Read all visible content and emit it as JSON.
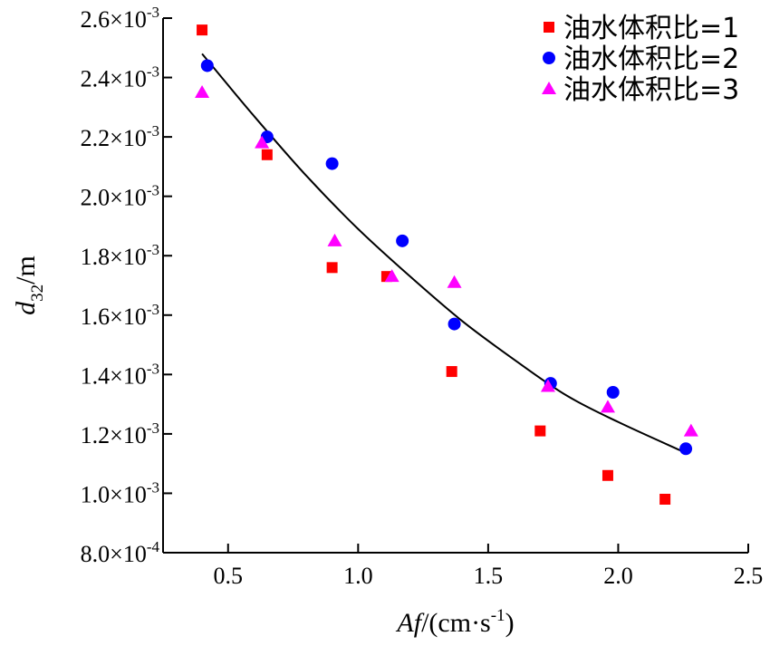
{
  "chart_data": {
    "type": "scatter",
    "xlabel": {
      "italic": "Af",
      "text": "/(cm·s",
      "sup": "-1",
      "close": ")"
    },
    "ylabel": {
      "italic": "d",
      "sub": "32",
      "text": "/m"
    },
    "xlim": [
      0.25,
      2.5
    ],
    "ylim": [
      0.0008,
      0.0026
    ],
    "x_ticks": [
      {
        "value": 0.5,
        "label": "0.5"
      },
      {
        "value": 1.0,
        "label": "1.0"
      },
      {
        "value": 1.5,
        "label": "1.5"
      },
      {
        "value": 2.0,
        "label": "2.0"
      },
      {
        "value": 2.5,
        "label": "2.5"
      }
    ],
    "y_ticks": [
      {
        "value": 0.0008,
        "mantissa": "8.0×10",
        "exp": "-4"
      },
      {
        "value": 0.001,
        "mantissa": "1.0×10",
        "exp": "-3"
      },
      {
        "value": 0.0012,
        "mantissa": "1.2×10",
        "exp": "-3"
      },
      {
        "value": 0.0014,
        "mantissa": "1.4×10",
        "exp": "-3"
      },
      {
        "value": 0.0016,
        "mantissa": "1.6×10",
        "exp": "-3"
      },
      {
        "value": 0.0018,
        "mantissa": "1.8×10",
        "exp": "-3"
      },
      {
        "value": 0.002,
        "mantissa": "2.0×10",
        "exp": "-3"
      },
      {
        "value": 0.0022,
        "mantissa": "2.2×10",
        "exp": "-3"
      },
      {
        "value": 0.0024,
        "mantissa": "2.4×10",
        "exp": "-3"
      },
      {
        "value": 0.0026,
        "mantissa": "2.6×10",
        "exp": "-3"
      }
    ],
    "grid": false,
    "legend_position": "top-right",
    "series": [
      {
        "name": "油水体积比=1",
        "marker": "square",
        "color": "#ff0000",
        "points": [
          [
            0.4,
            0.00256
          ],
          [
            0.65,
            0.00214
          ],
          [
            0.9,
            0.00176
          ],
          [
            1.11,
            0.00173
          ],
          [
            1.36,
            0.00141
          ],
          [
            1.7,
            0.00121
          ],
          [
            1.96,
            0.00106
          ],
          [
            2.18,
            0.00098
          ]
        ]
      },
      {
        "name": "油水体积比=2",
        "marker": "circle",
        "color": "#0000ff",
        "points": [
          [
            0.42,
            0.00244
          ],
          [
            0.65,
            0.0022
          ],
          [
            0.9,
            0.00211
          ],
          [
            1.17,
            0.00185
          ],
          [
            1.37,
            0.00157
          ],
          [
            1.74,
            0.00137
          ],
          [
            1.98,
            0.00134
          ],
          [
            2.26,
            0.00115
          ]
        ]
      },
      {
        "name": "油水体积比=3",
        "marker": "triangle",
        "color": "#ff00ff",
        "points": [
          [
            0.4,
            0.00235
          ],
          [
            0.63,
            0.00218
          ],
          [
            0.91,
            0.00185
          ],
          [
            1.13,
            0.00173
          ],
          [
            1.37,
            0.00171
          ],
          [
            1.73,
            0.00136
          ],
          [
            1.96,
            0.00129
          ],
          [
            2.28,
            0.00121
          ]
        ]
      }
    ],
    "fit_line": {
      "color": "#000000",
      "x": [
        0.4,
        0.6,
        0.8,
        1.0,
        1.2,
        1.4,
        1.6,
        1.8,
        2.0,
        2.25
      ],
      "y": [
        0.00248,
        0.00227,
        0.00207,
        0.00189,
        0.00173,
        0.00158,
        0.00145,
        0.00133,
        0.00124,
        0.00114
      ]
    }
  }
}
